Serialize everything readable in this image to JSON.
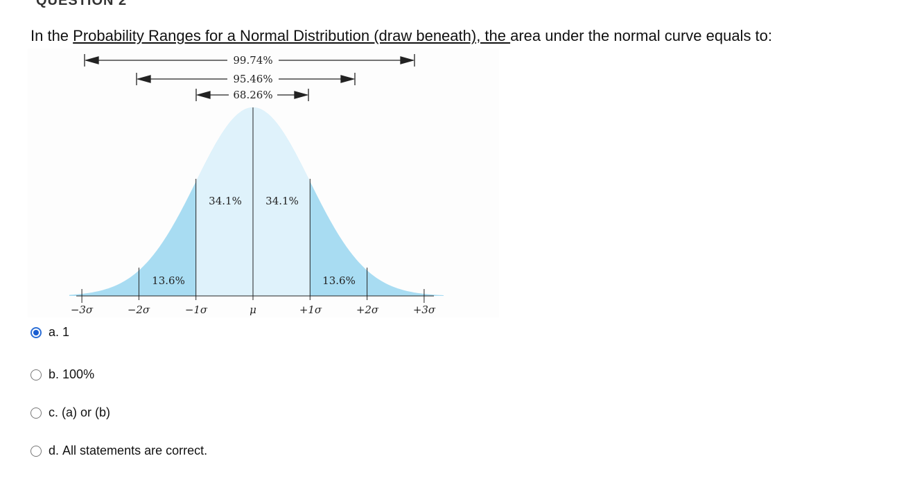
{
  "header": {
    "cut_text": "QUESTION 2"
  },
  "question": {
    "prefix": "In the ",
    "link1": "Probability Ranges for a Normal Distribution (draw beneath), the ",
    "suffix": "area under the normal curve equals to:"
  },
  "figure": {
    "ranges": [
      "99.74%",
      "95.46%",
      "68.26%"
    ],
    "region_labels": [
      "13.6%",
      "34.1%",
      "34.1%",
      "13.6%"
    ],
    "axis_ticks": [
      "−3σ",
      "−2σ",
      "−1σ",
      "μ",
      "+1σ",
      "+2σ",
      "+3σ"
    ],
    "colors": {
      "outer": "#a8dcf2",
      "inner": "#dff2fb",
      "line": "#222222"
    }
  },
  "options": [
    {
      "letter": "a.",
      "text": "1",
      "selected": true
    },
    {
      "letter": "b.",
      "text": "100%",
      "selected": false
    },
    {
      "letter": "c.",
      "text": "(a) or (b)",
      "selected": false
    },
    {
      "letter": "d.",
      "text": "All statements are correct.",
      "selected": false
    }
  ]
}
